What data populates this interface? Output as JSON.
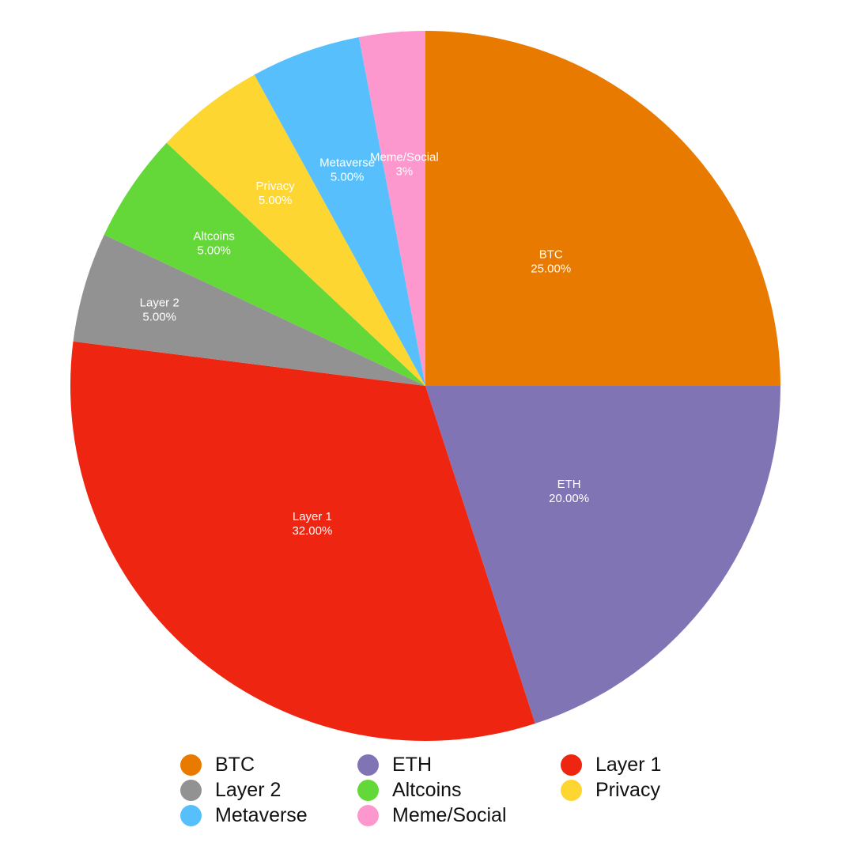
{
  "chart_data": {
    "type": "pie",
    "title": "",
    "start_angle_deg": 0,
    "direction": "clockwise",
    "slices": [
      {
        "label": "BTC",
        "value": 25.0,
        "display": "25.00%",
        "color": "#e97a00"
      },
      {
        "label": "ETH",
        "value": 20.0,
        "display": "20.00%",
        "color": "#8074b5"
      },
      {
        "label": "Layer 1",
        "value": 32.0,
        "display": "32.00%",
        "color": "#ee2510"
      },
      {
        "label": "Layer 2",
        "value": 5.0,
        "display": "5.00%",
        "color": "#929292"
      },
      {
        "label": "Altcoins",
        "value": 5.0,
        "display": "5.00%",
        "color": "#63d838"
      },
      {
        "label": "Privacy",
        "value": 5.0,
        "display": "5.00%",
        "color": "#fed631"
      },
      {
        "label": "Metaverse",
        "value": 5.0,
        "display": "5.00%",
        "color": "#57c0fc"
      },
      {
        "label": "Meme/Social",
        "value": 3.0,
        "display": "3%",
        "color": "#fd98ce"
      }
    ],
    "legend": {
      "placement": "bottom",
      "entries": [
        "BTC",
        "ETH",
        "Layer 1",
        "Layer 2",
        "Altcoins",
        "Privacy",
        "Metaverse",
        "Meme/Social"
      ]
    }
  }
}
